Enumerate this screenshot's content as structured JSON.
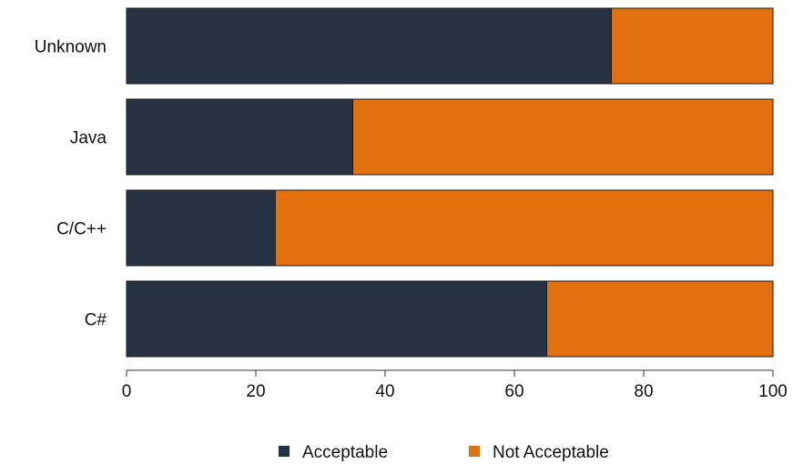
{
  "chart_data": {
    "type": "bar",
    "orientation": "horizontal",
    "stacked": true,
    "categories": [
      "Unknown",
      "Java",
      "C/C++",
      "C#"
    ],
    "series": [
      {
        "name": "Acceptable",
        "values": [
          75,
          35,
          23,
          65
        ],
        "color": "#283242"
      },
      {
        "name": "Not Acceptable",
        "values": [
          25,
          65,
          77,
          35
        ],
        "color": "#E3700F"
      }
    ],
    "xlim": [
      0,
      100
    ],
    "xticks": [
      "0",
      "20",
      "40",
      "60",
      "80",
      "100"
    ],
    "legend_position": "bottom",
    "grid": false
  }
}
